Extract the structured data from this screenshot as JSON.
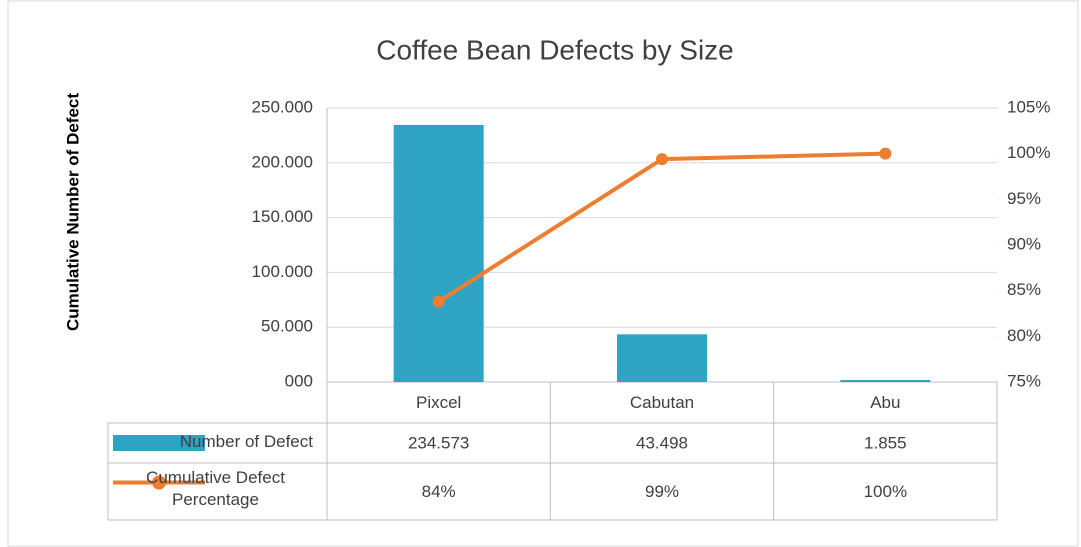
{
  "chart_data": {
    "type": "bar",
    "title": "Coffee Bean Defects by Size",
    "y_label": "Cumulative Number of Defect",
    "categories": [
      "Pixcel",
      "Cabutan",
      "Abu"
    ],
    "series": [
      {
        "name": "Number of Defect",
        "type": "bar",
        "color": "#2ea3c4",
        "values": [
          234573,
          43498,
          1855
        ],
        "value_labels": [
          "234.573",
          "43.498",
          "1.855"
        ]
      },
      {
        "name": "Cumulative Defect Percentage",
        "type": "line",
        "axis": "y2",
        "color": "#ed7d31",
        "values": [
          83.8,
          99.4,
          100
        ],
        "value_labels": [
          "84%",
          "99%",
          "100%"
        ]
      }
    ],
    "ylim": [
      0,
      250000
    ],
    "yticks": [
      {
        "value": 0,
        "label": "000"
      },
      {
        "value": 50000,
        "label": "50.000"
      },
      {
        "value": 100000,
        "label": "100.000"
      },
      {
        "value": 150000,
        "label": "150.000"
      },
      {
        "value": 200000,
        "label": "200.000"
      },
      {
        "value": 250000,
        "label": "250.000"
      }
    ],
    "y2lim": [
      75,
      105
    ],
    "y2ticks": [
      {
        "value": 75,
        "label": "75%"
      },
      {
        "value": 80,
        "label": "80%"
      },
      {
        "value": 85,
        "label": "85%"
      },
      {
        "value": 90,
        "label": "90%"
      },
      {
        "value": 95,
        "label": "95%"
      },
      {
        "value": 100,
        "label": "100%"
      },
      {
        "value": 105,
        "label": "105%"
      }
    ],
    "grid": true,
    "data_table": true
  }
}
